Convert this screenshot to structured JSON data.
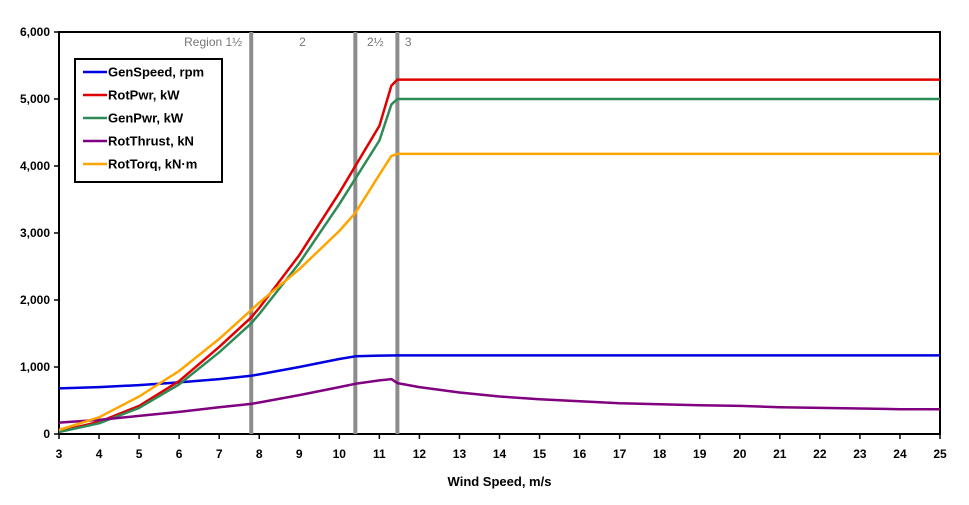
{
  "chart_data": {
    "type": "line",
    "title": "",
    "xlabel": "Wind Speed, m/s",
    "ylabel": "",
    "xlim": [
      3,
      25
    ],
    "ylim": [
      0,
      6000
    ],
    "x_ticks": [
      3,
      4,
      5,
      6,
      7,
      8,
      9,
      10,
      11,
      12,
      13,
      14,
      15,
      16,
      17,
      18,
      19,
      20,
      21,
      22,
      23,
      24,
      25
    ],
    "y_ticks": [
      0,
      1000,
      2000,
      3000,
      4000,
      5000,
      6000
    ],
    "y_tick_labels": [
      "0",
      "1,000",
      "2,000",
      "3,000",
      "4,000",
      "5,000",
      "6,000"
    ],
    "grid": false,
    "legend_position": "top-left",
    "region_boundaries": [
      {
        "x": 7.8,
        "label": "Region 1½"
      },
      {
        "x": 10.4,
        "label": "2"
      },
      {
        "x": 11.45,
        "label": "2½"
      },
      {
        "x": 25,
        "label": "3"
      }
    ],
    "region_labels": [
      {
        "text": "Region 1½",
        "x": 6.85
      },
      {
        "text": "2",
        "x": 9.08
      },
      {
        "text": "2½",
        "x": 10.9
      },
      {
        "text": "3",
        "x": 11.72
      }
    ],
    "series": [
      {
        "name": "GenSpeed, rpm",
        "color": "#0000e0",
        "points": [
          [
            3,
            680
          ],
          [
            4,
            700
          ],
          [
            5,
            730
          ],
          [
            6,
            770
          ],
          [
            7,
            820
          ],
          [
            7.8,
            870
          ],
          [
            8,
            890
          ],
          [
            9,
            1000
          ],
          [
            10,
            1120
          ],
          [
            10.4,
            1160
          ],
          [
            11,
            1170
          ],
          [
            11.45,
            1173
          ],
          [
            12,
            1173
          ],
          [
            25,
            1173
          ]
        ]
      },
      {
        "name": "RotPwr, kW",
        "color": "#e00000",
        "points": [
          [
            3,
            40
          ],
          [
            4,
            180
          ],
          [
            5,
            420
          ],
          [
            6,
            790
          ],
          [
            7,
            1300
          ],
          [
            7.8,
            1740
          ],
          [
            8,
            1880
          ],
          [
            9,
            2670
          ],
          [
            10,
            3600
          ],
          [
            11,
            4600
          ],
          [
            11.3,
            5200
          ],
          [
            11.45,
            5290
          ],
          [
            12,
            5290
          ],
          [
            25,
            5290
          ]
        ]
      },
      {
        "name": "GenPwr, kW",
        "color": "#2e8b57",
        "points": [
          [
            3,
            30
          ],
          [
            4,
            160
          ],
          [
            5,
            390
          ],
          [
            6,
            740
          ],
          [
            7,
            1220
          ],
          [
            7.8,
            1650
          ],
          [
            8,
            1790
          ],
          [
            9,
            2550
          ],
          [
            10,
            3430
          ],
          [
            11,
            4380
          ],
          [
            11.3,
            4920
          ],
          [
            11.45,
            5000
          ],
          [
            12,
            5000
          ],
          [
            25,
            5000
          ]
        ]
      },
      {
        "name": "RotThrust, kN",
        "color": "#800080",
        "points": [
          [
            3,
            170
          ],
          [
            4,
            210
          ],
          [
            5,
            270
          ],
          [
            6,
            330
          ],
          [
            7,
            400
          ],
          [
            7.8,
            450
          ],
          [
            8,
            470
          ],
          [
            9,
            580
          ],
          [
            10,
            700
          ],
          [
            10.4,
            750
          ],
          [
            11,
            800
          ],
          [
            11.3,
            820
          ],
          [
            11.45,
            760
          ],
          [
            12,
            700
          ],
          [
            13,
            620
          ],
          [
            14,
            560
          ],
          [
            15,
            520
          ],
          [
            16,
            490
          ],
          [
            17,
            460
          ],
          [
            18,
            445
          ],
          [
            19,
            430
          ],
          [
            20,
            420
          ],
          [
            21,
            400
          ],
          [
            22,
            390
          ],
          [
            23,
            380
          ],
          [
            24,
            370
          ],
          [
            25,
            370
          ]
        ]
      },
      {
        "name": "RotTorq, kN·m",
        "color": "#ffa500",
        "points": [
          [
            3,
            60
          ],
          [
            4,
            250
          ],
          [
            5,
            560
          ],
          [
            6,
            940
          ],
          [
            7,
            1420
          ],
          [
            7.8,
            1850
          ],
          [
            8,
            1960
          ],
          [
            9,
            2460
          ],
          [
            10,
            3030
          ],
          [
            10.4,
            3300
          ],
          [
            11,
            3870
          ],
          [
            11.3,
            4150
          ],
          [
            11.45,
            4180
          ],
          [
            12,
            4180
          ],
          [
            25,
            4180
          ]
        ]
      }
    ]
  }
}
